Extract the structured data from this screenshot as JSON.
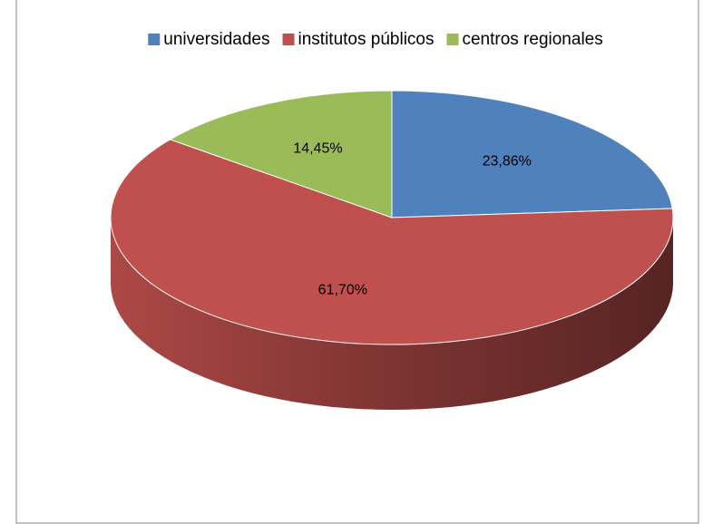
{
  "chart_data": {
    "type": "pie",
    "categories": [
      "universidades",
      "institutos públicos",
      "centros regionales"
    ],
    "values": [
      23.86,
      61.7,
      14.45
    ],
    "value_labels": [
      "23,86%",
      "61,70%",
      "14,45%"
    ],
    "colors": [
      "#4f81bd",
      "#c0504d",
      "#9bbb59"
    ],
    "legend": "top"
  }
}
